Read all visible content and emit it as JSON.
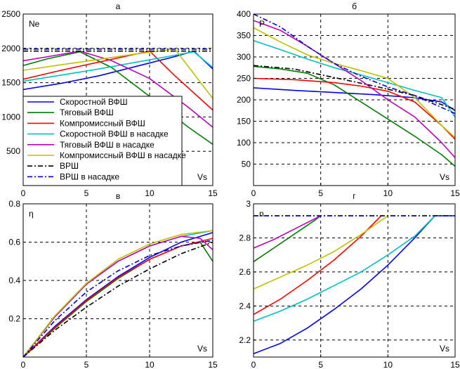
{
  "chart_data": [
    {
      "type": "line",
      "title": "а",
      "ylabel": "Ne",
      "xlabel": "Vs",
      "xlim": [
        0,
        15
      ],
      "ylim": [
        0,
        2500
      ],
      "xticks": [
        0,
        5,
        10,
        15
      ],
      "yticks": [
        500,
        1000,
        1500,
        2000,
        2500
      ],
      "grid": true,
      "legend_position": "bottom-left",
      "series": [
        {
          "name": "Скоростной ВФШ",
          "color": "#0000ff",
          "style": "solid",
          "x": [
            0,
            3,
            6,
            9,
            12,
            13.5,
            15
          ],
          "y": [
            1400,
            1490,
            1600,
            1740,
            1880,
            1960,
            1700
          ]
        },
        {
          "name": "Тяговый ВФШ",
          "color": "#008000",
          "style": "solid",
          "x": [
            0,
            2,
            4.5,
            7,
            10,
            13,
            15
          ],
          "y": [
            1750,
            1850,
            1950,
            1720,
            1300,
            860,
            600
          ]
        },
        {
          "name": "Компромиссный ВФШ",
          "color": "#ff0000",
          "style": "solid",
          "x": [
            0,
            3,
            6,
            9,
            10,
            12,
            15
          ],
          "y": [
            1550,
            1680,
            1800,
            1920,
            1960,
            1600,
            1100
          ]
        },
        {
          "name": "Скоростной ВФШ в насадке",
          "color": "#00c0c0",
          "style": "solid",
          "x": [
            0,
            3,
            6,
            9,
            12,
            13.5,
            15
          ],
          "y": [
            1520,
            1610,
            1700,
            1800,
            1900,
            1950,
            1720
          ]
        },
        {
          "name": "Тяговый ВФШ в насадке",
          "color": "#c000c0",
          "style": "solid",
          "x": [
            0,
            2,
            4.5,
            7,
            10,
            13,
            15
          ],
          "y": [
            1820,
            1880,
            1960,
            1820,
            1560,
            1150,
            850
          ]
        },
        {
          "name": "Компромиссный ВФШ в насадке",
          "color": "#c0c000",
          "style": "solid",
          "x": [
            0,
            3,
            6,
            9,
            12,
            15
          ],
          "y": [
            1680,
            1760,
            1840,
            1920,
            1990,
            1270
          ]
        },
        {
          "name": "ВРШ",
          "color": "#000000",
          "style": "dashdot",
          "x": [
            0,
            15
          ],
          "y": [
            1960,
            1960
          ]
        },
        {
          "name": "ВРШ в насадке",
          "color": "#0000cc",
          "style": "dashdot",
          "x": [
            0,
            15
          ],
          "y": [
            1990,
            1990
          ]
        }
      ]
    },
    {
      "type": "line",
      "title": "б",
      "ylabel": "P",
      "xlabel": "Vs",
      "xlim": [
        0,
        15
      ],
      "ylim": [
        0,
        400
      ],
      "xticks": [
        0,
        5,
        10,
        15
      ],
      "yticks": [
        50,
        100,
        150,
        200,
        250,
        300,
        350,
        400
      ],
      "grid": true,
      "series": [
        {
          "name": "Скоростной ВФШ",
          "color": "#0000ff",
          "style": "solid",
          "x": [
            0,
            3,
            6,
            9,
            12,
            14,
            15
          ],
          "y": [
            228,
            222,
            217,
            212,
            205,
            195,
            175
          ]
        },
        {
          "name": "Тяговый ВФШ",
          "color": "#008000",
          "style": "solid",
          "x": [
            0,
            2,
            4,
            6,
            8,
            10,
            12,
            14,
            15
          ],
          "y": [
            278,
            272,
            262,
            235,
            195,
            155,
            115,
            72,
            45
          ]
        },
        {
          "name": "Компромиссный ВФШ",
          "color": "#ff0000",
          "style": "solid",
          "x": [
            0,
            3,
            6,
            8,
            10,
            12,
            14,
            15
          ],
          "y": [
            250,
            247,
            240,
            232,
            220,
            195,
            140,
            108
          ]
        },
        {
          "name": "Скоростной ВФШ в насадке",
          "color": "#00c0c0",
          "style": "solid",
          "x": [
            0,
            2,
            4,
            6,
            8,
            10,
            12,
            14,
            15
          ],
          "y": [
            338,
            317,
            295,
            275,
            258,
            240,
            222,
            205,
            160
          ]
        },
        {
          "name": "Тяговый ВФШ в насадке",
          "color": "#c000c0",
          "style": "solid",
          "x": [
            0,
            2,
            4,
            6,
            8,
            10,
            12,
            14,
            15
          ],
          "y": [
            385,
            362,
            325,
            285,
            245,
            200,
            160,
            100,
            65
          ]
        },
        {
          "name": "Компромиссный ВФШ в насадке",
          "color": "#c0c000",
          "style": "solid",
          "x": [
            0,
            2,
            4,
            6,
            8,
            10,
            12,
            14,
            15
          ],
          "y": [
            368,
            335,
            305,
            285,
            268,
            250,
            205,
            140,
            112
          ]
        },
        {
          "name": "ВРШ",
          "color": "#000000",
          "style": "dashdot",
          "x": [
            0,
            3,
            6,
            9,
            12,
            15
          ],
          "y": [
            280,
            272,
            252,
            232,
            210,
            178
          ]
        },
        {
          "name": "ВРШ в насадке",
          "color": "#0000cc",
          "style": "dashdot",
          "x": [
            0,
            2,
            4,
            6,
            8,
            10,
            12,
            15
          ],
          "y": [
            400,
            370,
            325,
            285,
            255,
            230,
            210,
            168
          ]
        }
      ]
    },
    {
      "type": "line",
      "title": "в",
      "ylabel": "η",
      "xlabel": "Vs",
      "xlim": [
        0,
        15
      ],
      "ylim": [
        0,
        0.8
      ],
      "xticks": [
        0,
        5,
        10,
        15
      ],
      "yticks": [
        0.2,
        0.4,
        0.6,
        0.8
      ],
      "grid": true,
      "series": [
        {
          "name": "Скоростной ВФШ",
          "color": "#0000ff",
          "style": "solid",
          "x": [
            0,
            2.5,
            5,
            7.5,
            10,
            12.5,
            15
          ],
          "y": [
            0,
            0.16,
            0.3,
            0.42,
            0.52,
            0.6,
            0.65
          ]
        },
        {
          "name": "Тяговый ВФШ",
          "color": "#008000",
          "style": "solid",
          "x": [
            0,
            2.5,
            5,
            7.5,
            10,
            12.5,
            14,
            15
          ],
          "y": [
            0,
            0.15,
            0.29,
            0.41,
            0.51,
            0.58,
            0.6,
            0.5
          ]
        },
        {
          "name": "Компромиссный ВФШ",
          "color": "#ff0000",
          "style": "solid",
          "x": [
            0,
            2.5,
            5,
            7.5,
            10,
            12.5,
            15
          ],
          "y": [
            0,
            0.155,
            0.295,
            0.415,
            0.51,
            0.58,
            0.62
          ]
        },
        {
          "name": "Скоростной ВФШ в насадке",
          "color": "#00c0c0",
          "style": "solid",
          "x": [
            0,
            2.5,
            5,
            7.5,
            10,
            12.5,
            15
          ],
          "y": [
            0,
            0.21,
            0.38,
            0.5,
            0.58,
            0.63,
            0.66
          ]
        },
        {
          "name": "Тяговый ВФШ в насадке",
          "color": "#c000c0",
          "style": "solid",
          "x": [
            0,
            2.5,
            5,
            7.5,
            10,
            12.5,
            14,
            15
          ],
          "y": [
            0,
            0.21,
            0.38,
            0.5,
            0.58,
            0.63,
            0.62,
            0.56
          ]
        },
        {
          "name": "Компромиссный ВФШ в насадке",
          "color": "#c0c000",
          "style": "solid",
          "x": [
            0,
            2.5,
            5,
            7.5,
            10,
            12.5,
            15
          ],
          "y": [
            0,
            0.215,
            0.385,
            0.51,
            0.59,
            0.64,
            0.66
          ]
        },
        {
          "name": "ВРШ",
          "color": "#000000",
          "style": "dashdot",
          "x": [
            0,
            2.5,
            5,
            7.5,
            10,
            12.5,
            15
          ],
          "y": [
            0,
            0.14,
            0.26,
            0.37,
            0.46,
            0.54,
            0.6
          ]
        },
        {
          "name": "ВРШ в насадке",
          "color": "#0000cc",
          "style": "dashdot",
          "x": [
            0,
            2.5,
            5,
            7.5,
            10,
            12.5,
            15
          ],
          "y": [
            0,
            0.19,
            0.34,
            0.45,
            0.53,
            0.58,
            0.61
          ]
        }
      ]
    },
    {
      "type": "line",
      "title": "г",
      "ylabel": "n",
      "xlabel": "Vs",
      "xlim": [
        0,
        15
      ],
      "ylim": [
        2.1,
        3
      ],
      "xticks": [
        0,
        5,
        10,
        15
      ],
      "yticks": [
        2.2,
        2.4,
        2.6,
        2.8,
        3
      ],
      "grid": true,
      "series": [
        {
          "name": "Скоростной ВФШ",
          "color": "#0000ff",
          "style": "solid",
          "x": [
            0,
            2,
            4,
            6,
            8,
            10,
            12,
            13.5,
            15
          ],
          "y": [
            2.12,
            2.18,
            2.27,
            2.38,
            2.5,
            2.64,
            2.8,
            2.93,
            2.93
          ]
        },
        {
          "name": "Тяговый ВФШ",
          "color": "#008000",
          "style": "solid",
          "x": [
            0,
            1.5,
            3,
            4.5,
            5
          ],
          "y": [
            2.66,
            2.74,
            2.82,
            2.9,
            2.93
          ]
        },
        {
          "name": "Компромиссный ВФШ",
          "color": "#ff0000",
          "style": "solid",
          "x": [
            0,
            2,
            4,
            6,
            8,
            9.5
          ],
          "y": [
            2.35,
            2.44,
            2.55,
            2.67,
            2.81,
            2.93
          ]
        },
        {
          "name": "Скоростной ВФШ в насадке",
          "color": "#00c0c0",
          "style": "solid",
          "x": [
            0,
            2,
            4,
            6,
            8,
            10,
            12,
            13.5
          ],
          "y": [
            2.31,
            2.37,
            2.44,
            2.52,
            2.6,
            2.7,
            2.81,
            2.93
          ]
        },
        {
          "name": "Тяговый ВФШ в насадке",
          "color": "#c000c0",
          "style": "solid",
          "x": [
            0,
            1.5,
            3,
            4.5,
            5
          ],
          "y": [
            2.74,
            2.79,
            2.85,
            2.91,
            2.93
          ]
        },
        {
          "name": "Компромиссный ВФШ в насадке",
          "color": "#c0c000",
          "style": "solid",
          "x": [
            0,
            2,
            4,
            6,
            8,
            10
          ],
          "y": [
            2.5,
            2.57,
            2.64,
            2.72,
            2.82,
            2.93
          ]
        },
        {
          "name": "ВРШ",
          "color": "#000000",
          "style": "dashdot",
          "x": [
            0,
            15
          ],
          "y": [
            2.93,
            2.93
          ]
        },
        {
          "name": "ВРШ в насадке",
          "color": "#0000cc",
          "style": "dashdot",
          "x": [
            0,
            15
          ],
          "y": [
            2.93,
            2.93
          ]
        }
      ]
    }
  ]
}
